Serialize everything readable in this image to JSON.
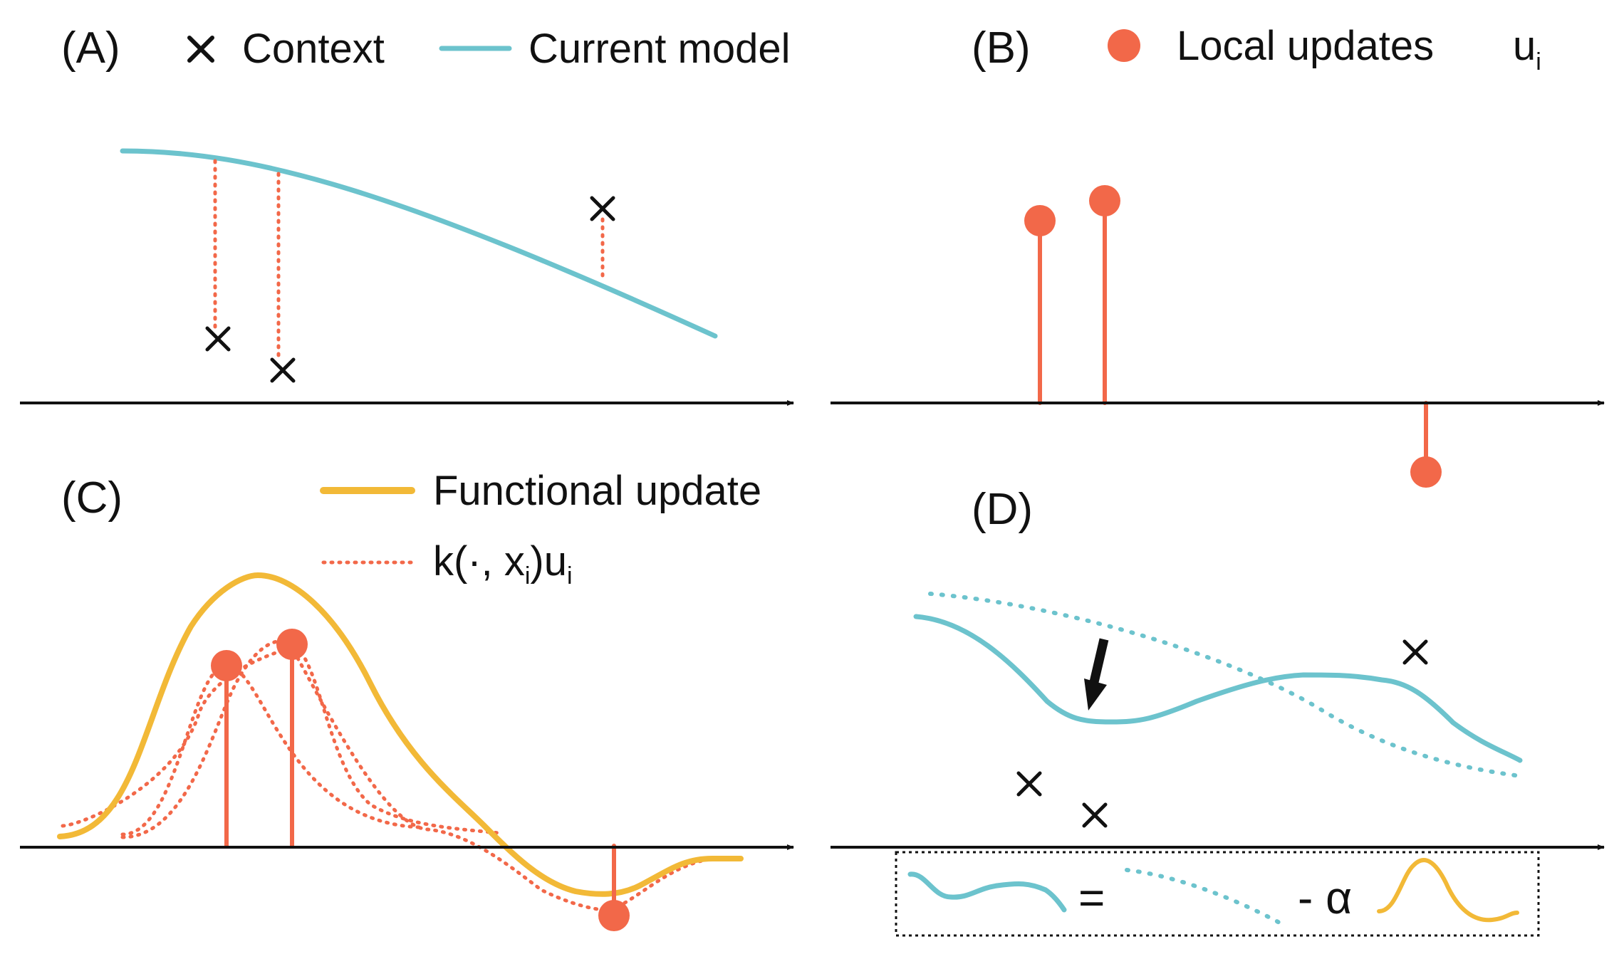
{
  "colors": {
    "model": "#6cc3cd",
    "update": "#f26849",
    "functional": "#f2b937",
    "ink": "#111111"
  },
  "panels": {
    "a": {
      "tag": "(A)",
      "legend_context": "Context",
      "legend_model": "Current model"
    },
    "b": {
      "tag": "(B)",
      "legend_updates": "Local updates",
      "legend_symbol": "u",
      "legend_subscript": "i"
    },
    "c": {
      "tag": "(C)",
      "legend_functional": "Functional update",
      "legend_kernel_prefix": "k(·, x",
      "legend_kernel_sub1": "i",
      "legend_kernel_mid": ")u",
      "legend_kernel_sub2": "i"
    },
    "d": {
      "tag": "(D)",
      "equation_equals": "=",
      "equation_minus_alpha": "- α"
    }
  }
}
